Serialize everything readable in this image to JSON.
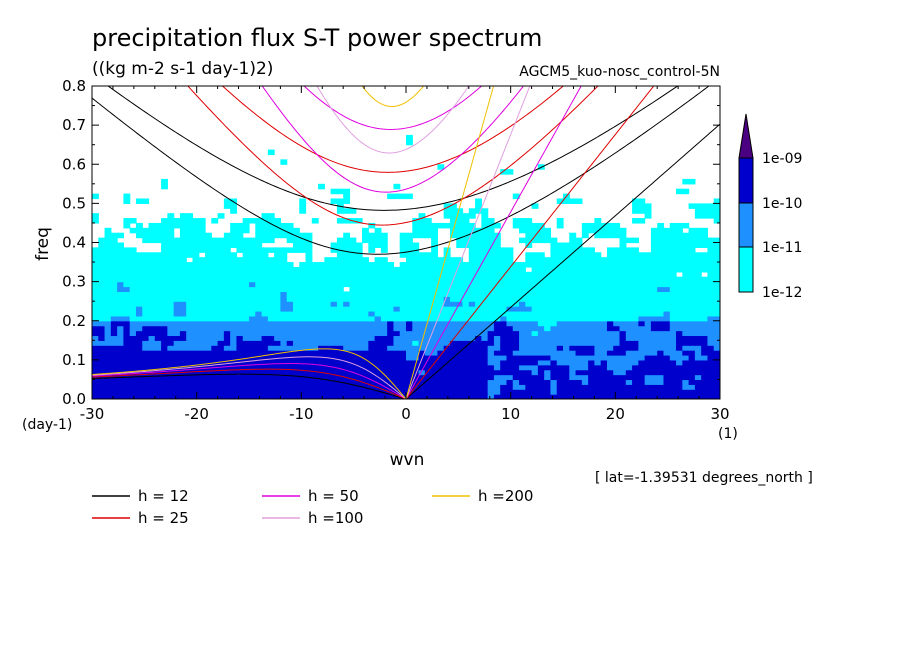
{
  "title": "precipitation flux S-T power spectrum",
  "units": "((kg m-2 s-1 day-1)2)",
  "run_name": "AGCM5_kuo-nosc_control-5N",
  "latitude_note": "[ lat=-1.39531 degrees_north ]",
  "chart_data": {
    "type": "heatmap",
    "xlabel": "wvn",
    "ylabel": "freq",
    "x_unit_label": "(1)",
    "y_unit_label": "(day-1)",
    "xlim": [
      -30,
      30
    ],
    "ylim": [
      0,
      0.8
    ],
    "x_ticks": [
      -30,
      -20,
      -10,
      0,
      10,
      20,
      30
    ],
    "y_ticks": [
      0.0,
      0.1,
      0.2,
      0.3,
      0.4,
      0.5,
      0.6,
      0.7,
      0.8
    ],
    "contour_levels": [
      "1e-12",
      "1e-11",
      "1e-10",
      "1e-09"
    ],
    "level_colors": [
      "#00ffff",
      "#1e90ff",
      "#0000cd",
      "#4b0082"
    ],
    "dispersion_curves": [
      {
        "name": "h = 12",
        "h": 12,
        "color": "#000000"
      },
      {
        "name": "h = 25",
        "h": 25,
        "color": "#e00000"
      },
      {
        "name": "h = 50",
        "h": 50,
        "color": "#e000e0"
      },
      {
        "name": "h =100",
        "h": 100,
        "color": "#e0a0e0"
      },
      {
        "name": "h =200",
        "h": 200,
        "color": "#f0c000"
      }
    ]
  }
}
